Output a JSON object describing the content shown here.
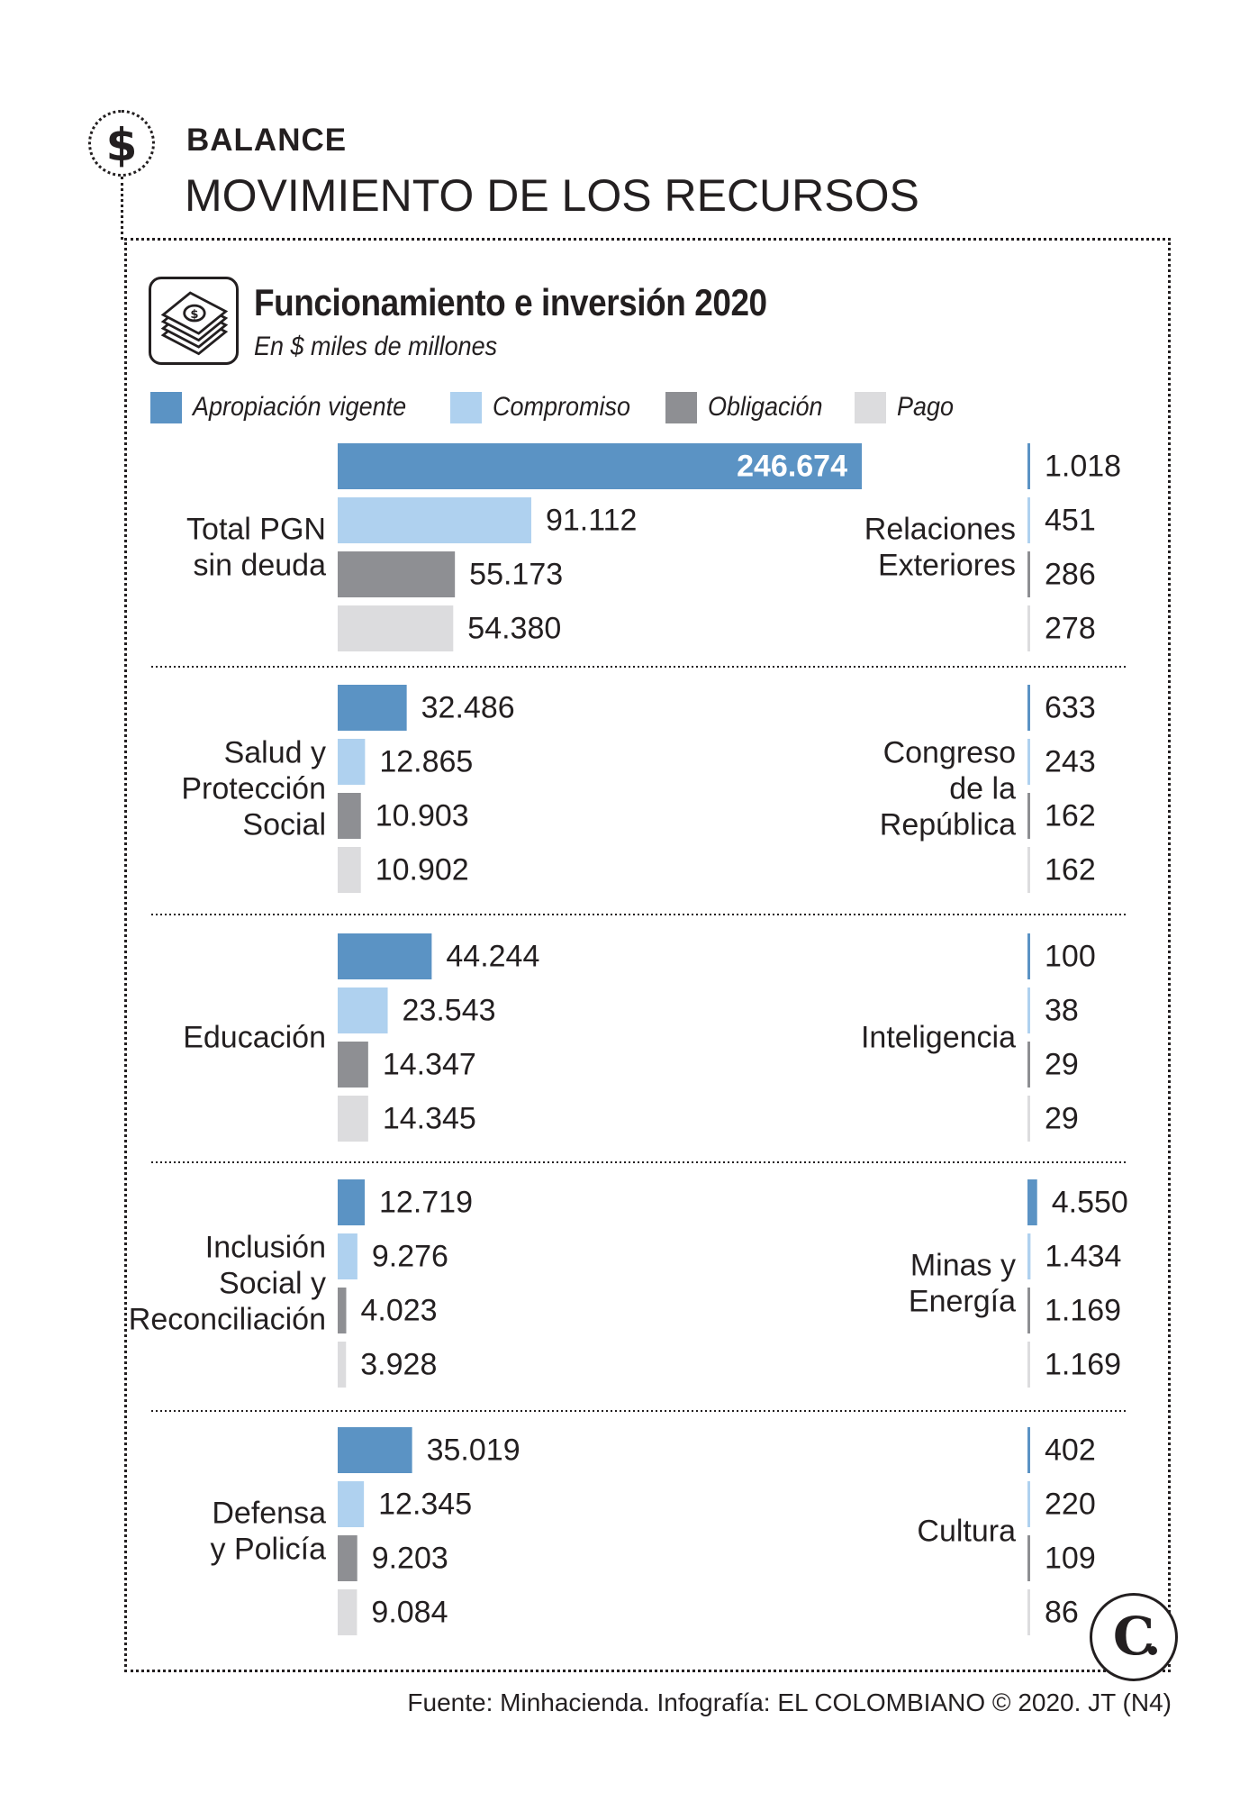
{
  "header": {
    "kicker": "BALANCE",
    "headline": "MOVIMIENTO DE LOS RECURSOS"
  },
  "chart_header": {
    "title": "Funcionamiento e inversión 2020",
    "subtitle": "En $ miles de millones"
  },
  "legend": [
    {
      "label": "Apropiación vigente",
      "color": "#5b93c4"
    },
    {
      "label": "Compromiso",
      "color": "#afd1ef"
    },
    {
      "label": "Obligación",
      "color": "#8e8f93"
    },
    {
      "label": "Pago",
      "color": "#dcdcde"
    }
  ],
  "source": "Fuente: Minhacienda. Infografía: EL COLOMBIANO © 2020. JT (N4)",
  "icons": {
    "header": "dollar-icon",
    "chart": "money-stack-icon",
    "logo": "el-colombiano-logo"
  },
  "chart_data": {
    "type": "bar",
    "orientation": "horizontal",
    "title": "Funcionamiento e inversión 2020",
    "subtitle": "En $ miles de millones",
    "series": [
      "Apropiación vigente",
      "Compromiso",
      "Obligación",
      "Pago"
    ],
    "colors": [
      "#5b93c4",
      "#afd1ef",
      "#8e8f93",
      "#dcdcde"
    ],
    "left_panel": {
      "max": 246674,
      "categories": [
        {
          "name": "Total PGN sin deuda",
          "label_lines": [
            "Total PGN",
            "sin deuda"
          ],
          "values": [
            246674,
            91112,
            55173,
            54380
          ],
          "labels": [
            "246.674",
            "91.112",
            "55.173",
            "54.380"
          ]
        },
        {
          "name": "Salud y Protección Social",
          "label_lines": [
            "Salud y",
            "Protección",
            "Social"
          ],
          "values": [
            32486,
            12865,
            10903,
            10902
          ],
          "labels": [
            "32.486",
            "12.865",
            "10.903",
            "10.902"
          ]
        },
        {
          "name": "Educación",
          "label_lines": [
            "Educación"
          ],
          "values": [
            44244,
            23543,
            14347,
            14345
          ],
          "labels": [
            "44.244",
            "23.543",
            "14.347",
            "14.345"
          ]
        },
        {
          "name": "Inclusión Social y Reconciliación",
          "label_lines": [
            "Inclusión",
            "Social y",
            "Reconciliación"
          ],
          "values": [
            12719,
            9276,
            4023,
            3928
          ],
          "labels": [
            "12.719",
            "9.276",
            "4.023",
            "3.928"
          ]
        },
        {
          "name": "Defensa y Policía",
          "label_lines": [
            "Defensa",
            "y Policía"
          ],
          "values": [
            35019,
            12345,
            9203,
            9084
          ],
          "labels": [
            "35.019",
            "12.345",
            "9.203",
            "9.084"
          ]
        }
      ]
    },
    "right_panel": {
      "max": 246674,
      "categories": [
        {
          "name": "Relaciones Exteriores",
          "label_lines": [
            "Relaciones",
            "Exteriores"
          ],
          "values": [
            1018,
            451,
            286,
            278
          ],
          "labels": [
            "1.018",
            "451",
            "286",
            "278"
          ]
        },
        {
          "name": "Congreso de la República",
          "label_lines": [
            "Congreso",
            "de la",
            "República"
          ],
          "values": [
            633,
            243,
            162,
            162
          ],
          "labels": [
            "633",
            "243",
            "162",
            "162"
          ]
        },
        {
          "name": "Inteligencia",
          "label_lines": [
            "Inteligencia"
          ],
          "values": [
            100,
            38,
            29,
            29
          ],
          "labels": [
            "100",
            "38",
            "29",
            "29"
          ]
        },
        {
          "name": "Minas y Energía",
          "label_lines": [
            "Minas y",
            "Energía"
          ],
          "values": [
            4550,
            1434,
            1169,
            1169
          ],
          "labels": [
            "4.550",
            "1.434",
            "1.169",
            "1.169"
          ]
        },
        {
          "name": "Cultura",
          "label_lines": [
            "Cultura"
          ],
          "values": [
            402,
            220,
            109,
            86
          ],
          "labels": [
            "402",
            "220",
            "109",
            "86"
          ]
        }
      ]
    }
  }
}
